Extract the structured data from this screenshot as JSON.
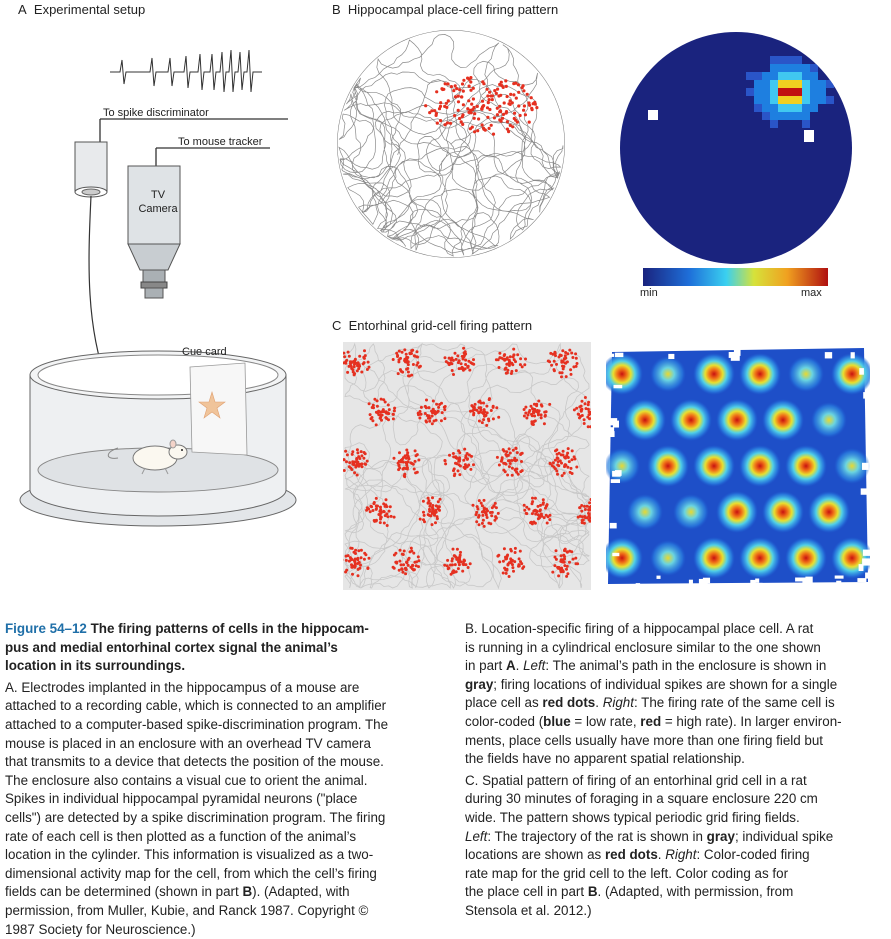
{
  "panels": {
    "a": {
      "letter": "A",
      "title": "Experimental setup",
      "spike_discriminator": "To spike discriminator",
      "mouse_tracker": "To mouse tracker",
      "camera_line1": "TV",
      "camera_line2": "Camera",
      "cue_card": "Cue card"
    },
    "b": {
      "letter": "B",
      "title": "Hippocampal place-cell firing pattern",
      "scale_min": "min",
      "scale_max": "max"
    },
    "c": {
      "letter": "C",
      "title": "Entorhinal grid-cell firing pattern"
    }
  },
  "colors": {
    "figure_title": "#1f6fa8",
    "map_background": "#1a237e",
    "spike_dots": "#e53020",
    "trajectory": "#8a8a8a"
  },
  "caption": {
    "figure_label": "Figure 54–12",
    "title_text": "The firing patterns of cells in the hippocam-pus and medial entorhinal cortex signal the animal's location in its surroundings.",
    "title_lines": [
      "The firing patterns of cells in the hippocam-",
      "pus and medial entorhinal cortex signal the animal’s",
      "location in its surroundings."
    ],
    "a_lines": [
      "Electrodes implanted in the hippocampus of a mouse are",
      "attached to a recording cable, which is connected to an amplifier",
      "attached to a computer-based spike-discrimination program. The",
      "mouse is placed in an enclosure with an overhead TV camera",
      "that transmits to a device that detects the position of the mouse.",
      "The enclosure also contains a visual cue to orient the animal.",
      "Spikes in individual hippocampal pyramidal neurons (\"place",
      "cells\") are detected by a spike discrimination program. The firing",
      "rate of each cell is then plotted as a function of the animal’s",
      "location in the cylinder. This information is visualized as a two-",
      "dimensional activity map for the cell, from which the cell’s firing",
      "fields can be determined (shown in part B). (Adapted, with",
      "permission, from Muller, Kubie, and Ranck 1987. Copyright ©",
      "1987 Society for Neuroscience.)"
    ],
    "b_lines": [
      "B. Location-specific firing of a hippocampal place cell. A rat",
      "is running in a cylindrical enclosure similar to the one shown",
      "in part A. Left: The animal’s path in the enclosure is shown in",
      "gray; firing locations of individual spikes are shown for a single",
      "place cell as red dots. Right: The firing rate of the same cell is",
      "color-coded (blue = low rate, red = high rate). In larger environ-",
      "ments, place cells usually have more than one firing field but",
      "the fields have no apparent spatial relationship."
    ],
    "c_lines": [
      "C. Spatial pattern of firing of an entorhinal grid cell in a rat",
      "during 30 minutes of foraging in a square enclosure 220 cm",
      "wide. The pattern shows typical periodic grid firing fields.",
      "Left: The trajectory of the rat is shown in gray; individual spike",
      "locations are shown as red dots. Right: Color-coded firing",
      "rate map for the grid cell to the left. Color coding as for",
      "the place cell in part B. (Adapted, with permission, from",
      "Stensola et al. 2012.)"
    ]
  }
}
